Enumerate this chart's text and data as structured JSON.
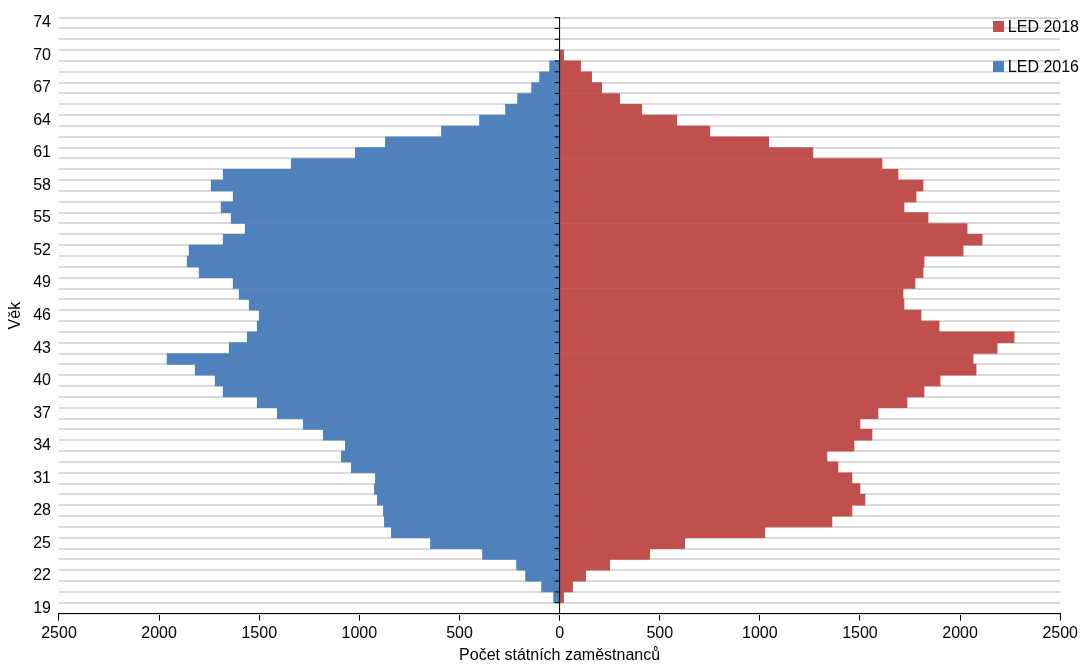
{
  "chart_data": {
    "type": "bar",
    "orientation": "horizontal",
    "xlabel": "Počet státních zaměstnanců",
    "ylabel": "Věk",
    "categories": [
      "74",
      null,
      null,
      "70",
      null,
      null,
      "67",
      null,
      null,
      "64",
      null,
      null,
      "61",
      null,
      null,
      "58",
      null,
      null,
      "55",
      null,
      null,
      "52",
      null,
      null,
      "49",
      null,
      null,
      "46",
      null,
      null,
      "43",
      null,
      null,
      "40",
      null,
      null,
      "37",
      null,
      null,
      "34",
      null,
      null,
      "31",
      null,
      null,
      "28",
      null,
      null,
      "25",
      null,
      null,
      "22",
      null,
      null,
      "19"
    ],
    "series": [
      {
        "name": "LED 2018",
        "color": "#c0504d",
        "values": [
          0,
          0,
          0,
          20,
          105,
          160,
          210,
          300,
          410,
          585,
          750,
          1045,
          1265,
          1610,
          1690,
          1815,
          1780,
          1720,
          1840,
          2035,
          2110,
          2015,
          1820,
          1815,
          1775,
          1715,
          1720,
          1805,
          1895,
          2270,
          2185,
          2065,
          2080,
          1900,
          1820,
          1735,
          1590,
          1500,
          1560,
          1470,
          1335,
          1390,
          1460,
          1500,
          1525,
          1460,
          1360,
          1025,
          625,
          450,
          250,
          130,
          65,
          20,
          0
        ]
      },
      {
        "name": "LED 2016",
        "color": "#4f81bd",
        "values": [
          0,
          0,
          0,
          0,
          -50,
          -100,
          -140,
          -210,
          -270,
          -400,
          -590,
          -870,
          -1020,
          -1340,
          -1680,
          -1740,
          -1630,
          -1690,
          -1640,
          -1570,
          -1680,
          -1850,
          -1860,
          -1800,
          -1630,
          -1600,
          -1550,
          -1500,
          -1510,
          -1560,
          -1650,
          -1960,
          -1820,
          -1720,
          -1680,
          -1510,
          -1410,
          -1280,
          -1180,
          -1070,
          -1090,
          -1040,
          -920,
          -925,
          -910,
          -880,
          -875,
          -840,
          -645,
          -385,
          -215,
          -170,
          -90,
          -30,
          0
        ]
      }
    ],
    "xlim": [
      -2500,
      2500
    ],
    "xticks": [
      {
        "value": -2500,
        "label": "2500"
      },
      {
        "value": -2000,
        "label": "2000"
      },
      {
        "value": -1500,
        "label": "1500"
      },
      {
        "value": -1000,
        "label": "1000"
      },
      {
        "value": -500,
        "label": "500"
      },
      0,
      500,
      1000,
      1500,
      2000,
      2500
    ],
    "stacked": true,
    "grid": "y",
    "legend": "top right"
  }
}
